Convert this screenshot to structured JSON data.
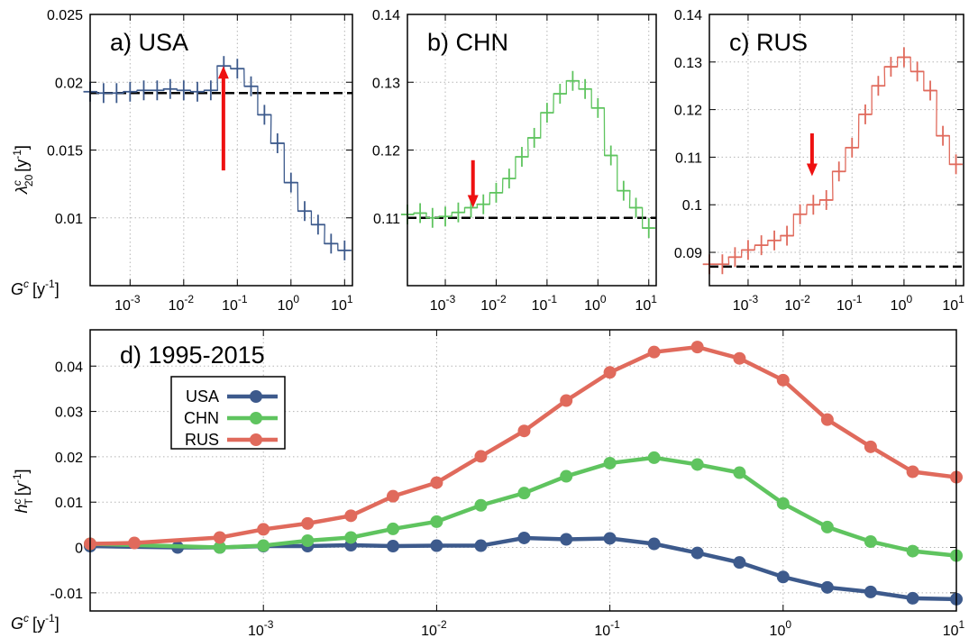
{
  "figure_labels": {
    "xaxis_label_top": "G",
    "xaxis_label_bottom": "G",
    "xaxis_sup": "c",
    "xaxis_unit": "[y",
    "xaxis_unit_exp": "-1",
    "xaxis_unit_close": "]",
    "ylabel_a_main": "λ",
    "ylabel_a_sup": "c",
    "ylabel_a_sub": "20",
    "ylabel_d_main": "h",
    "ylabel_d_sup": "c",
    "ylabel_d_sub": "T"
  },
  "colors": {
    "USA": "#3d5a8c",
    "CHN": "#5fc45f",
    "RUS": "#e06a5c",
    "arrow": "#ee1111"
  },
  "chart_data": [
    {
      "id": "a",
      "type": "scatter",
      "title": "a) USA",
      "x_scale": "log",
      "xlim": [
        0.00018,
        14
      ],
      "ylim": [
        0.005,
        0.025
      ],
      "grid": true,
      "yticks": [
        0.01,
        0.015,
        0.02,
        0.025
      ],
      "ytick_labels": [
        "0.01",
        "0.015",
        "0.02",
        "0.025"
      ],
      "xticks": [
        0.001,
        0.01,
        0.1,
        1,
        10
      ],
      "xtick_bases": [
        "10",
        "10",
        "10",
        "10",
        "10"
      ],
      "xtick_exps": [
        "-3",
        "-2",
        "-1",
        "0",
        "1"
      ],
      "baseline": 0.0192,
      "arrow": {
        "x": 0.055,
        "from": 0.0135,
        "to": 0.0212
      },
      "series": [
        {
          "name": "USA",
          "x": [
            0.00018,
            0.00032,
            0.00056,
            0.001,
            0.0018,
            0.0032,
            0.0056,
            0.01,
            0.018,
            0.032,
            0.056,
            0.1,
            0.18,
            0.32,
            0.56,
            1.0,
            1.8,
            3.2,
            5.6,
            10
          ],
          "y": [
            0.0193,
            0.0192,
            0.0192,
            0.0193,
            0.0194,
            0.0194,
            0.0195,
            0.0194,
            0.0193,
            0.0194,
            0.0212,
            0.021,
            0.0197,
            0.0176,
            0.0155,
            0.0126,
            0.0105,
            0.0095,
            0.0081,
            0.0076
          ]
        }
      ]
    },
    {
      "id": "b",
      "type": "scatter",
      "title": "b) CHN",
      "x_scale": "log",
      "xlim": [
        0.00018,
        14
      ],
      "ylim": [
        0.1,
        0.14
      ],
      "grid": true,
      "yticks": [
        0.11,
        0.12,
        0.13,
        0.14
      ],
      "ytick_labels": [
        "0.11",
        "0.12",
        "0.13",
        "0.14"
      ],
      "xticks": [
        0.001,
        0.01,
        0.1,
        1,
        10
      ],
      "xtick_bases": [
        "10",
        "10",
        "10",
        "10",
        "10"
      ],
      "xtick_exps": [
        "-3",
        "-2",
        "-1",
        "0",
        "1"
      ],
      "baseline": 0.11,
      "arrow": {
        "x": 0.0035,
        "from": 0.1185,
        "to": 0.1115
      },
      "series": [
        {
          "name": "CHN",
          "x": [
            0.00018,
            0.00032,
            0.00056,
            0.001,
            0.0018,
            0.0032,
            0.0056,
            0.01,
            0.018,
            0.032,
            0.056,
            0.1,
            0.18,
            0.32,
            0.56,
            1.0,
            1.8,
            3.2,
            5.6,
            10
          ],
          "y": [
            0.1105,
            0.1107,
            0.11,
            0.1102,
            0.1108,
            0.1115,
            0.112,
            0.1137,
            0.1158,
            0.119,
            0.1218,
            0.1255,
            0.1283,
            0.1302,
            0.129,
            0.1262,
            0.1192,
            0.114,
            0.1115,
            0.1085
          ]
        }
      ]
    },
    {
      "id": "c",
      "type": "scatter",
      "title": "c) RUS",
      "x_scale": "log",
      "xlim": [
        0.00018,
        14
      ],
      "ylim": [
        0.083,
        0.14
      ],
      "grid": true,
      "yticks": [
        0.09,
        0.1,
        0.11,
        0.12,
        0.13,
        0.14
      ],
      "ytick_labels": [
        "0.09",
        "0.1",
        "0.11",
        "0.12",
        "0.13",
        "0.14"
      ],
      "xticks": [
        0.001,
        0.01,
        0.1,
        1,
        10
      ],
      "xtick_bases": [
        "10",
        "10",
        "10",
        "10",
        "10"
      ],
      "xtick_exps": [
        "-3",
        "-2",
        "-1",
        "0",
        "1"
      ],
      "baseline": 0.087,
      "arrow": {
        "x": 0.017,
        "from": 0.115,
        "to": 0.106
      },
      "series": [
        {
          "name": "RUS",
          "x": [
            0.00018,
            0.00032,
            0.00056,
            0.001,
            0.0018,
            0.0032,
            0.0056,
            0.01,
            0.018,
            0.032,
            0.056,
            0.1,
            0.18,
            0.32,
            0.56,
            1.0,
            1.8,
            3.2,
            5.6,
            10
          ],
          "y": [
            0.0875,
            0.0875,
            0.089,
            0.0905,
            0.0915,
            0.0925,
            0.0935,
            0.098,
            0.1,
            0.101,
            0.107,
            0.112,
            0.119,
            0.125,
            0.129,
            0.131,
            0.128,
            0.124,
            0.1145,
            0.1085
          ]
        }
      ]
    },
    {
      "id": "d",
      "type": "line",
      "title": "d) 1995-2015",
      "x_scale": "log",
      "xlim": [
        0.0001,
        10
      ],
      "ylim": [
        -0.014,
        0.048
      ],
      "grid": true,
      "legend": "upper-left",
      "yticks": [
        -0.01,
        0,
        0.01,
        0.02,
        0.03,
        0.04
      ],
      "ytick_labels": [
        "-0.01",
        "0",
        "0.01",
        "0.02",
        "0.03",
        "0.04"
      ],
      "xticks": [
        0.001,
        0.01,
        0.1,
        1,
        10
      ],
      "xtick_bases": [
        "10",
        "10",
        "10",
        "10",
        "10"
      ],
      "xtick_exps": [
        "-3",
        "-2",
        "-1",
        "0",
        "1"
      ],
      "x": [
        0.0001,
        0.00018,
        0.00032,
        0.00056,
        0.001,
        0.0018,
        0.0032,
        0.0056,
        0.01,
        0.018,
        0.032,
        0.056,
        0.1,
        0.18,
        0.32,
        0.56,
        1.0,
        1.8,
        3.2,
        5.6,
        10
      ],
      "series": [
        {
          "name": "USA",
          "values": [
            0.0003,
            null,
            0.0,
            0.0,
            0.0003,
            0.0003,
            0.0005,
            0.0003,
            0.0004,
            0.0004,
            0.0021,
            0.0018,
            0.002,
            0.0008,
            -0.0012,
            -0.0033,
            -0.0065,
            -0.0088,
            -0.0098,
            -0.0112,
            -0.0114
          ]
        },
        {
          "name": "CHN",
          "values": [
            0.0008,
            null,
            null,
            0.0,
            0.0004,
            0.0015,
            0.0022,
            0.0041,
            0.0057,
            0.0093,
            0.012,
            0.0157,
            0.0186,
            0.0198,
            0.0183,
            0.0165,
            0.0097,
            0.0045,
            0.0013,
            -0.0008,
            -0.0018
          ]
        },
        {
          "name": "RUS",
          "values": [
            0.0008,
            0.001,
            null,
            0.0022,
            0.004,
            0.0053,
            0.007,
            0.0113,
            0.0143,
            0.0201,
            0.0257,
            0.0324,
            0.0386,
            0.0431,
            0.0442,
            0.0417,
            0.0369,
            0.0282,
            0.0222,
            0.0167,
            0.0155
          ]
        }
      ]
    }
  ]
}
